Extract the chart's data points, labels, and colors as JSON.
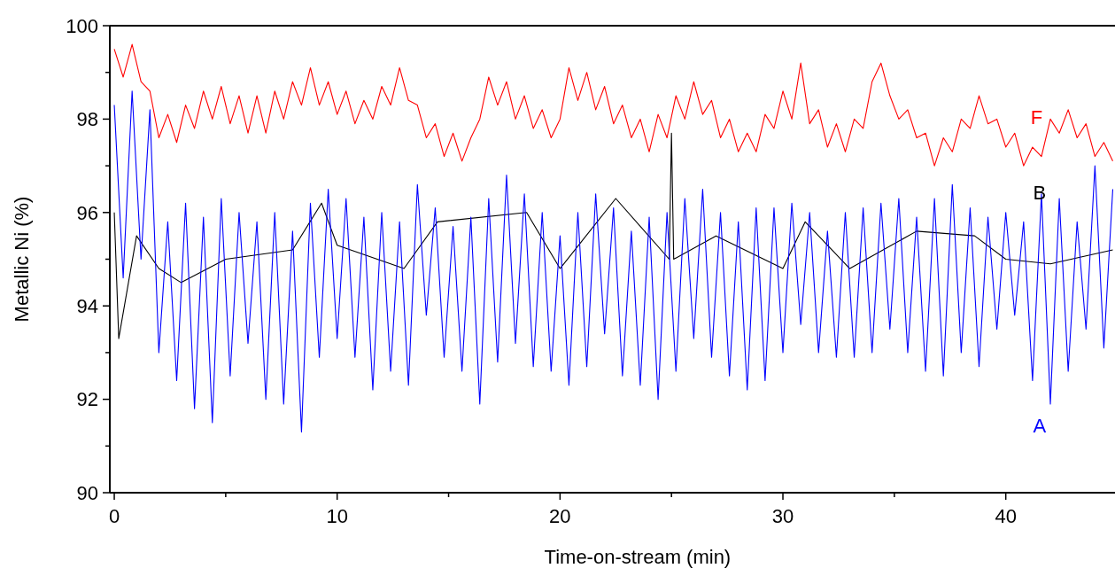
{
  "chart_data": {
    "type": "line",
    "xlabel": "Time-on-stream (min)",
    "ylabel": "Metallic Ni (%)",
    "xlim": [
      -0.2,
      44.9
    ],
    "ylim": [
      90,
      100
    ],
    "xticks": [
      0,
      {
        "value": 5,
        "label": null
      },
      10,
      {
        "value": 15,
        "label": null
      },
      20,
      {
        "value": 25,
        "label": null
      },
      30,
      {
        "value": 35,
        "label": null
      },
      40
    ],
    "yticks": [
      90,
      {
        "value": 91,
        "label": null
      },
      92,
      {
        "value": 93,
        "label": null
      },
      94,
      {
        "value": 95,
        "label": null
      },
      96,
      {
        "value": 97,
        "label": null
      },
      98,
      {
        "value": 99,
        "label": null
      },
      100
    ],
    "grid": false,
    "x": [
      0,
      0.4,
      0.8,
      1.2,
      1.6,
      2.0,
      2.4,
      2.8,
      3.2,
      3.6,
      4.0,
      4.4,
      4.8,
      5.2,
      5.6,
      6.0,
      6.4,
      6.8,
      7.2,
      7.6,
      8.0,
      8.4,
      8.8,
      9.2,
      9.6,
      10.0,
      10.4,
      10.8,
      11.2,
      11.6,
      12.0,
      12.4,
      12.8,
      13.2,
      13.6,
      14.0,
      14.4,
      14.8,
      15.2,
      15.6,
      16.0,
      16.4,
      16.8,
      17.2,
      17.6,
      18.0,
      18.4,
      18.8,
      19.2,
      19.6,
      20.0,
      20.4,
      20.8,
      21.2,
      21.6,
      22.0,
      22.4,
      22.8,
      23.2,
      23.6,
      24.0,
      24.4,
      24.8,
      25.2,
      25.6,
      26.0,
      26.4,
      26.8,
      27.2,
      27.6,
      28.0,
      28.4,
      28.8,
      29.2,
      29.6,
      30.0,
      30.4,
      30.8,
      31.2,
      31.6,
      32.0,
      32.4,
      32.8,
      33.2,
      33.6,
      34.0,
      34.4,
      34.8,
      35.2,
      35.6,
      36.0,
      36.4,
      36.8,
      37.2,
      37.6,
      38.0,
      38.4,
      38.8,
      39.2,
      39.6,
      40.0,
      40.4,
      40.8,
      41.2,
      41.6,
      42.0,
      42.4,
      42.8,
      43.2,
      43.6,
      44.0,
      44.4,
      44.8
    ],
    "series": [
      {
        "name": "F",
        "color": "#ff0000",
        "values": [
          99.5,
          98.9,
          99.6,
          98.8,
          98.6,
          97.6,
          98.1,
          97.5,
          98.3,
          97.8,
          98.6,
          98.0,
          98.7,
          97.9,
          98.5,
          97.7,
          98.5,
          97.7,
          98.6,
          98.0,
          98.8,
          98.3,
          99.1,
          98.3,
          98.8,
          98.1,
          98.6,
          97.9,
          98.4,
          98.0,
          98.7,
          98.3,
          99.1,
          98.4,
          98.3,
          97.6,
          97.9,
          97.2,
          97.7,
          97.1,
          97.6,
          98.0,
          98.9,
          98.3,
          98.8,
          98.0,
          98.5,
          97.8,
          98.2,
          97.6,
          98.0,
          99.1,
          98.4,
          99.0,
          98.2,
          98.7,
          97.9,
          98.3,
          97.6,
          98.0,
          97.3,
          98.1,
          97.6,
          98.5,
          98.0,
          98.8,
          98.1,
          98.4,
          97.6,
          98.0,
          97.3,
          97.7,
          97.3,
          98.1,
          97.8,
          98.6,
          98.0,
          99.2,
          97.9,
          98.2,
          97.4,
          97.9,
          97.3,
          98.0,
          97.8,
          98.8,
          99.2,
          98.5,
          98.0,
          98.2,
          97.6,
          97.7,
          97.0,
          97.6,
          97.3,
          98.0,
          97.8,
          98.5,
          97.9,
          98.0,
          97.4,
          97.7,
          97.0,
          97.4,
          97.2,
          98.0,
          97.7,
          98.2,
          97.6,
          97.9,
          97.2,
          97.5,
          97.1
        ]
      },
      {
        "name": "B",
        "color": "#000000",
        "x": [
          0,
          0.2,
          1,
          2,
          3,
          5,
          8,
          9.3,
          10,
          13,
          14.5,
          18.5,
          20,
          22.5,
          24.9,
          25.0,
          25.1,
          27,
          30,
          31,
          33,
          36,
          38.6,
          40,
          42,
          44.8
        ],
        "values": [
          96,
          93.3,
          95.5,
          94.8,
          94.5,
          95,
          95.2,
          96.2,
          95.3,
          94.8,
          95.8,
          96.0,
          94.8,
          96.3,
          95.0,
          97.7,
          95.0,
          95.5,
          94.8,
          95.8,
          94.8,
          95.6,
          95.5,
          95.0,
          94.9,
          95.2
        ]
      },
      {
        "name": "A",
        "color": "#0000ff",
        "values": [
          98.3,
          94.6,
          98.6,
          95.0,
          98.2,
          93.0,
          95.8,
          92.4,
          96.2,
          91.8,
          95.9,
          91.5,
          96.3,
          92.5,
          96.0,
          93.2,
          95.8,
          92.0,
          96.0,
          91.9,
          95.6,
          91.3,
          96.2,
          92.9,
          96.5,
          93.3,
          96.3,
          92.9,
          95.9,
          92.2,
          96.0,
          92.6,
          95.8,
          92.3,
          96.6,
          93.8,
          96.1,
          92.9,
          95.7,
          92.6,
          95.9,
          91.9,
          96.3,
          92.8,
          96.8,
          93.2,
          96.4,
          92.7,
          96.0,
          92.6,
          95.5,
          92.3,
          96.0,
          92.7,
          96.4,
          93.4,
          96.1,
          92.5,
          95.6,
          92.3,
          95.9,
          92.0,
          96.0,
          92.6,
          96.3,
          93.3,
          96.5,
          92.9,
          96.0,
          92.5,
          95.8,
          92.2,
          96.1,
          92.4,
          96.1,
          93.0,
          96.2,
          93.6,
          96.0,
          93.0,
          95.6,
          92.9,
          96.0,
          92.9,
          96.1,
          93.0,
          96.2,
          93.5,
          96.3,
          93.0,
          95.9,
          92.6,
          96.3,
          92.5,
          96.6,
          93.0,
          96.1,
          92.7,
          95.9,
          93.5,
          96.0,
          93.8,
          95.8,
          92.4,
          96.4,
          91.9,
          96.3,
          92.6,
          95.8,
          93.5,
          97.0,
          93.1,
          96.5
        ]
      }
    ]
  }
}
